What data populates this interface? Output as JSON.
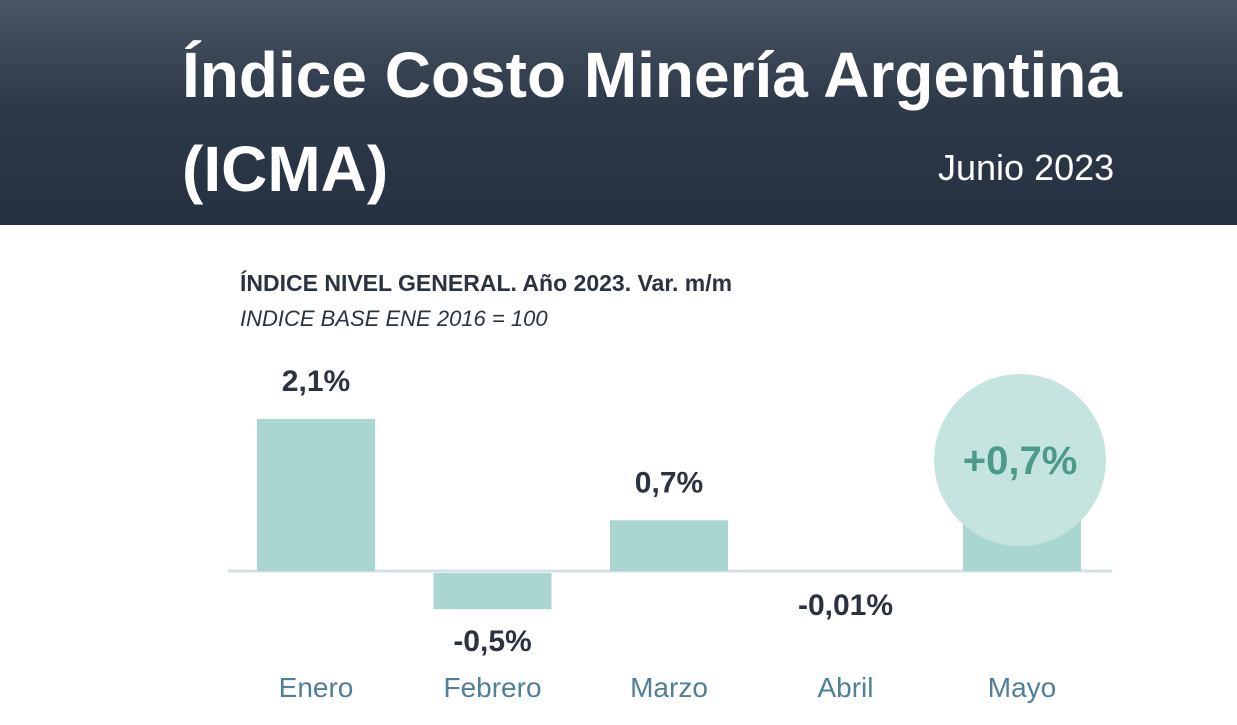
{
  "header": {
    "title": "Índice Costo Minería Argentina (ICMA)",
    "period": "Junio 2023"
  },
  "chart_data": {
    "type": "bar",
    "title": "ÍNDICE NIVEL GENERAL. Año 2023. Var. m/m",
    "subtitle": "INDICE BASE ENE 2016 = 100",
    "categories": [
      "Enero",
      "Febrero",
      "Marzo",
      "Abril",
      "Mayo"
    ],
    "values": [
      2.1,
      -0.5,
      0.7,
      -0.01,
      0.7
    ],
    "value_labels": [
      "2,1%",
      "-0,5%",
      "0,7%",
      "-0,01%",
      ""
    ],
    "unit": "%",
    "highlight": {
      "category": "Mayo",
      "label": "+0,7%"
    },
    "colors": {
      "bar": "#a9d6d1",
      "highlight_circle": "#c5e4e0",
      "highlight_text": "#4b9a8a",
      "category_text": "#4f7f9a"
    },
    "grid": false,
    "legend": "none"
  }
}
